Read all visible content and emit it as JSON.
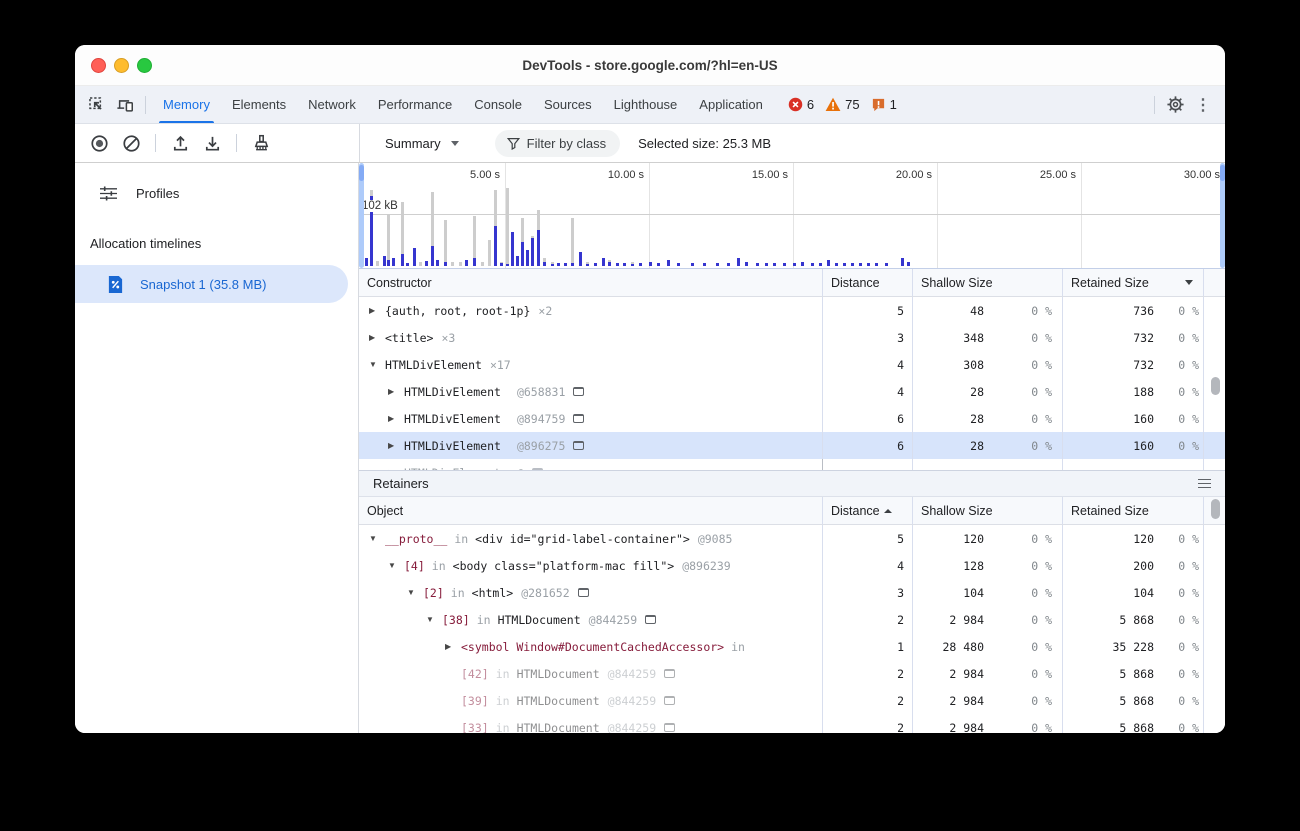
{
  "window": {
    "title": "DevTools - store.google.com/?hl=en-US"
  },
  "tabs": {
    "items": [
      "Memory",
      "Elements",
      "Network",
      "Performance",
      "Console",
      "Sources",
      "Lighthouse",
      "Application"
    ],
    "active": "Memory",
    "badges": {
      "errors": "6",
      "warnings": "75",
      "issues": "1"
    }
  },
  "toolbar": {
    "summary_label": "Summary",
    "filter_label": "Filter by class",
    "selected_size_label": "Selected size: 25.3 MB"
  },
  "sidebar": {
    "profiles_label": "Profiles",
    "group_label": "Allocation timelines",
    "snapshot_label": "Snapshot 1 (35.8 MB)"
  },
  "chart_data": {
    "type": "bar",
    "description": "Allocation timeline overview: gray bars = total allocations (kB), blue bars = surviving allocations (kB), x axis in seconds",
    "x_ticks": [
      "5.00 s",
      "10.00 s",
      "15.00 s",
      "20.00 s",
      "25.00 s",
      "30.00 s"
    ],
    "x_range_s": [
      0,
      30.5
    ],
    "y_ref": {
      "label": "102 kB",
      "kb": 102
    },
    "series": [
      "total allocated (gray)",
      "live (blue)"
    ],
    "bars": [
      [
        0.14,
        0,
        16
      ],
      [
        0.31,
        149,
        137
      ],
      [
        0.52,
        10,
        0
      ],
      [
        0.76,
        0,
        20
      ],
      [
        0.9,
        102,
        12
      ],
      [
        1.08,
        0,
        16
      ],
      [
        1.39,
        126,
        24
      ],
      [
        1.56,
        0,
        6
      ],
      [
        1.81,
        0,
        35
      ],
      [
        2.01,
        8,
        0
      ],
      [
        2.22,
        0,
        10
      ],
      [
        2.43,
        145,
        39
      ],
      [
        2.6,
        0,
        12
      ],
      [
        2.88,
        90,
        8
      ],
      [
        3.13,
        8,
        0
      ],
      [
        3.4,
        8,
        0
      ],
      [
        3.61,
        0,
        12
      ],
      [
        3.89,
        98,
        16
      ],
      [
        4.17,
        8,
        0
      ],
      [
        4.41,
        51,
        0
      ],
      [
        4.62,
        149,
        78
      ],
      [
        4.83,
        8,
        6
      ],
      [
        5.03,
        153,
        4
      ],
      [
        5.21,
        0,
        67
      ],
      [
        5.38,
        0,
        20
      ],
      [
        5.56,
        94,
        47
      ],
      [
        5.73,
        0,
        31
      ],
      [
        5.9,
        59,
        55
      ],
      [
        6.11,
        110,
        71
      ],
      [
        6.32,
        16,
        8
      ],
      [
        6.6,
        8,
        4
      ],
      [
        6.81,
        0,
        6
      ],
      [
        7.05,
        0,
        6
      ],
      [
        7.29,
        94,
        6
      ],
      [
        7.57,
        0,
        27
      ],
      [
        7.81,
        8,
        4
      ],
      [
        8.09,
        0,
        6
      ],
      [
        8.37,
        0,
        16
      ],
      [
        8.58,
        12,
        8
      ],
      [
        8.85,
        0,
        6
      ],
      [
        9.1,
        0,
        6
      ],
      [
        9.38,
        8,
        4
      ],
      [
        9.65,
        0,
        6
      ],
      [
        10.0,
        0,
        8
      ],
      [
        10.28,
        0,
        6
      ],
      [
        10.63,
        0,
        12
      ],
      [
        10.97,
        0,
        6
      ],
      [
        11.46,
        0,
        6
      ],
      [
        11.88,
        0,
        6
      ],
      [
        12.33,
        0,
        6
      ],
      [
        12.71,
        0,
        6
      ],
      [
        13.06,
        0,
        16
      ],
      [
        13.33,
        0,
        8
      ],
      [
        13.72,
        0,
        6
      ],
      [
        14.03,
        0,
        6
      ],
      [
        14.31,
        0,
        6
      ],
      [
        14.65,
        0,
        6
      ],
      [
        15.0,
        0,
        6
      ],
      [
        15.28,
        0,
        8
      ],
      [
        15.63,
        0,
        6
      ],
      [
        15.9,
        0,
        6
      ],
      [
        16.18,
        0,
        12
      ],
      [
        16.46,
        0,
        6
      ],
      [
        16.74,
        0,
        6
      ],
      [
        17.01,
        0,
        6
      ],
      [
        17.29,
        0,
        6
      ],
      [
        17.57,
        0,
        6
      ],
      [
        17.85,
        0,
        6
      ],
      [
        18.19,
        0,
        6
      ],
      [
        18.75,
        0,
        16
      ],
      [
        18.96,
        0,
        8
      ]
    ]
  },
  "constructor_table": {
    "columns": {
      "object": "Constructor",
      "distance": "Distance",
      "shallow": "Shallow Size",
      "retained": "Retained Size"
    },
    "sort": {
      "column": "Retained Size",
      "dir": "desc"
    },
    "rows": [
      {
        "arrow": "▶",
        "depth": 0,
        "name": "{auth, root, root-1p}",
        "count": "×2",
        "id": "",
        "reveal": false,
        "distance": "5",
        "shallow": "48",
        "shallow_pct": "0 %",
        "retained": "736",
        "retained_pct": "0 %",
        "selected": false,
        "dim": false,
        "cut": false
      },
      {
        "arrow": "▶",
        "depth": 0,
        "name": "<title>",
        "count": "×3",
        "id": "",
        "reveal": false,
        "distance": "3",
        "shallow": "348",
        "shallow_pct": "0 %",
        "retained": "732",
        "retained_pct": "0 %",
        "selected": false,
        "dim": false,
        "cut": false
      },
      {
        "arrow": "▼",
        "depth": 0,
        "name": "HTMLDivElement",
        "count": "×17",
        "id": "",
        "reveal": false,
        "distance": "4",
        "shallow": "308",
        "shallow_pct": "0 %",
        "retained": "732",
        "retained_pct": "0 %",
        "selected": false,
        "dim": false,
        "cut": false
      },
      {
        "arrow": "▶",
        "depth": 1,
        "name": "HTMLDivElement",
        "count": "",
        "id": "@658831",
        "reveal": true,
        "distance": "4",
        "shallow": "28",
        "shallow_pct": "0 %",
        "retained": "188",
        "retained_pct": "0 %",
        "selected": false,
        "dim": false,
        "cut": false
      },
      {
        "arrow": "▶",
        "depth": 1,
        "name": "HTMLDivElement",
        "count": "",
        "id": "@894759",
        "reveal": true,
        "distance": "6",
        "shallow": "28",
        "shallow_pct": "0 %",
        "retained": "160",
        "retained_pct": "0 %",
        "selected": false,
        "dim": false,
        "cut": false
      },
      {
        "arrow": "▶",
        "depth": 1,
        "name": "HTMLDivElement",
        "count": "",
        "id": "@896275",
        "reveal": true,
        "distance": "6",
        "shallow": "28",
        "shallow_pct": "0 %",
        "retained": "160",
        "retained_pct": "0 %",
        "selected": true,
        "dim": false,
        "cut": false
      },
      {
        "arrow": "▶",
        "depth": 1,
        "name": "HTMLDivElement",
        "count": "",
        "id": "@",
        "reveal": true,
        "distance": "",
        "shallow": "",
        "shallow_pct": "",
        "retained": "",
        "retained_pct": "",
        "selected": false,
        "dim": false,
        "cut": true
      }
    ]
  },
  "retainers": {
    "title": "Retainers",
    "columns": {
      "object": "Object",
      "distance": "Distance",
      "shallow": "Shallow Size",
      "retained": "Retained Size"
    },
    "sort": {
      "column": "Distance",
      "dir": "asc"
    },
    "rows": [
      {
        "arrow": "▼",
        "depth": 0,
        "prop": "__proto__",
        "link": "in",
        "obj": "<div id=\"grid-label-container\">",
        "id": "@9085",
        "reveal": false,
        "distance": "5",
        "shallow": "120",
        "shallow_pct": "0 %",
        "retained": "120",
        "retained_pct": "0 %",
        "dim": false
      },
      {
        "arrow": "▼",
        "depth": 1,
        "prop": "[4]",
        "link": "in",
        "obj": "<body class=\"platform-mac fill\">",
        "id": "@896239",
        "reveal": false,
        "distance": "4",
        "shallow": "128",
        "shallow_pct": "0 %",
        "retained": "200",
        "retained_pct": "0 %",
        "dim": false
      },
      {
        "arrow": "▼",
        "depth": 2,
        "prop": "[2]",
        "link": "in",
        "obj": "<html>",
        "id": "@281652",
        "reveal": true,
        "distance": "3",
        "shallow": "104",
        "shallow_pct": "0 %",
        "retained": "104",
        "retained_pct": "0 %",
        "dim": false
      },
      {
        "arrow": "▼",
        "depth": 3,
        "prop": "[38]",
        "link": "in",
        "obj": "HTMLDocument",
        "id": "@844259",
        "reveal": true,
        "distance": "2",
        "shallow": "2 984",
        "shallow_pct": "0 %",
        "retained": "5 868",
        "retained_pct": "0 %",
        "dim": false
      },
      {
        "arrow": "▶",
        "depth": 4,
        "prop": "<symbol Window#DocumentCachedAccessor>",
        "link": "in",
        "obj": "",
        "id": "",
        "reveal": false,
        "distance": "1",
        "shallow": "28 480",
        "shallow_pct": "0 %",
        "retained": "35 228",
        "retained_pct": "0 %",
        "dim": false
      },
      {
        "arrow": "",
        "depth": 4,
        "prop": "[42]",
        "link": "in",
        "obj": "HTMLDocument",
        "id": "@844259",
        "reveal": true,
        "distance": "2",
        "shallow": "2 984",
        "shallow_pct": "0 %",
        "retained": "5 868",
        "retained_pct": "0 %",
        "dim": true
      },
      {
        "arrow": "",
        "depth": 4,
        "prop": "[39]",
        "link": "in",
        "obj": "HTMLDocument",
        "id": "@844259",
        "reveal": true,
        "distance": "2",
        "shallow": "2 984",
        "shallow_pct": "0 %",
        "retained": "5 868",
        "retained_pct": "0 %",
        "dim": true
      },
      {
        "arrow": "",
        "depth": 4,
        "prop": "[33]",
        "link": "in",
        "obj": "HTMLDocument",
        "id": "@844259",
        "reveal": true,
        "distance": "2",
        "shallow": "2 984",
        "shallow_pct": "0 %",
        "retained": "5 868",
        "retained_pct": "0 %",
        "dim": true
      }
    ]
  }
}
